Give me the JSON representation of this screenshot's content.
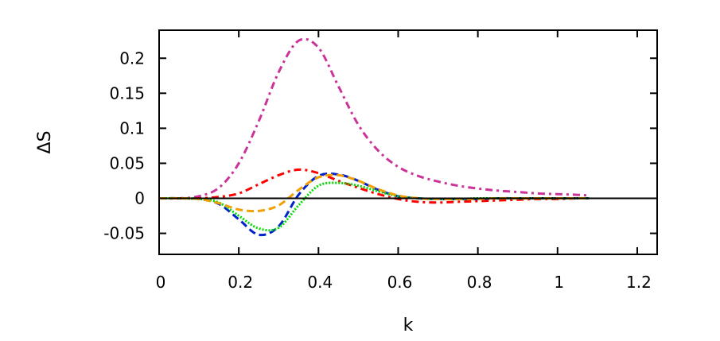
{
  "chart_data": {
    "type": "line",
    "title": "",
    "xlabel": "k",
    "ylabel": "ΔS",
    "xlim": [
      0,
      1.25
    ],
    "ylim": [
      -0.08,
      0.24
    ],
    "grid": false,
    "xticks": [
      "0",
      "0.2",
      "0.4",
      "0.6",
      "0.8",
      "1",
      "1.2"
    ],
    "xtick_values": [
      0,
      0.2,
      0.4,
      0.6,
      0.8,
      1.0,
      1.2
    ],
    "yticks": [
      "-0.05",
      "0",
      "0.05",
      "0.1",
      "0.15",
      "0.2"
    ],
    "ytick_values": [
      -0.05,
      0,
      0.05,
      0.1,
      0.15,
      0.2
    ],
    "x": [
      0,
      0.05,
      0.1,
      0.15,
      0.2,
      0.25,
      0.3,
      0.35,
      0.4,
      0.45,
      0.5,
      0.55,
      0.6,
      0.65,
      0.7,
      0.75,
      0.8,
      0.85,
      0.9,
      0.95,
      1.0,
      1.05,
      1.08
    ],
    "series": [
      {
        "color": "#cc3399",
        "dash": "dashdot",
        "values": [
          0,
          0,
          0.003,
          0.015,
          0.05,
          0.11,
          0.18,
          0.225,
          0.215,
          0.16,
          0.105,
          0.068,
          0.045,
          0.032,
          0.024,
          0.018,
          0.014,
          0.011,
          0.009,
          0.007,
          0.006,
          0.005,
          0.004
        ]
      },
      {
        "color": "#ff0000",
        "dash": "dashdot",
        "values": [
          0,
          0,
          0,
          0.002,
          0.007,
          0.02,
          0.033,
          0.041,
          0.036,
          0.025,
          0.015,
          0.006,
          -0.001,
          -0.005,
          -0.006,
          -0.005,
          -0.004,
          -0.003,
          -0.002,
          -0.001,
          -0.001,
          0,
          0
        ]
      },
      {
        "color": "#0022cc",
        "dash": "dashed",
        "values": [
          0,
          0,
          -0.001,
          -0.008,
          -0.03,
          -0.052,
          -0.04,
          0.005,
          0.032,
          0.034,
          0.025,
          0.012,
          0.003,
          0,
          -0.001,
          -0.001,
          -0.001,
          0,
          0,
          0,
          0,
          0,
          0
        ]
      },
      {
        "color": "#00dd00",
        "dash": "dotted",
        "values": [
          0,
          0,
          -0.001,
          -0.006,
          -0.025,
          -0.043,
          -0.042,
          -0.01,
          0.018,
          0.022,
          0.018,
          0.01,
          0.003,
          0,
          -0.001,
          -0.001,
          0,
          0,
          0,
          0,
          0,
          0,
          0
        ]
      },
      {
        "color": "#f0a000",
        "dash": "dashed",
        "values": [
          0,
          0,
          -0.001,
          -0.007,
          -0.016,
          -0.018,
          -0.01,
          0.012,
          0.03,
          0.033,
          0.025,
          0.013,
          0.004,
          0,
          -0.001,
          -0.001,
          -0.001,
          0,
          0,
          0,
          0,
          0,
          0
        ]
      }
    ]
  }
}
